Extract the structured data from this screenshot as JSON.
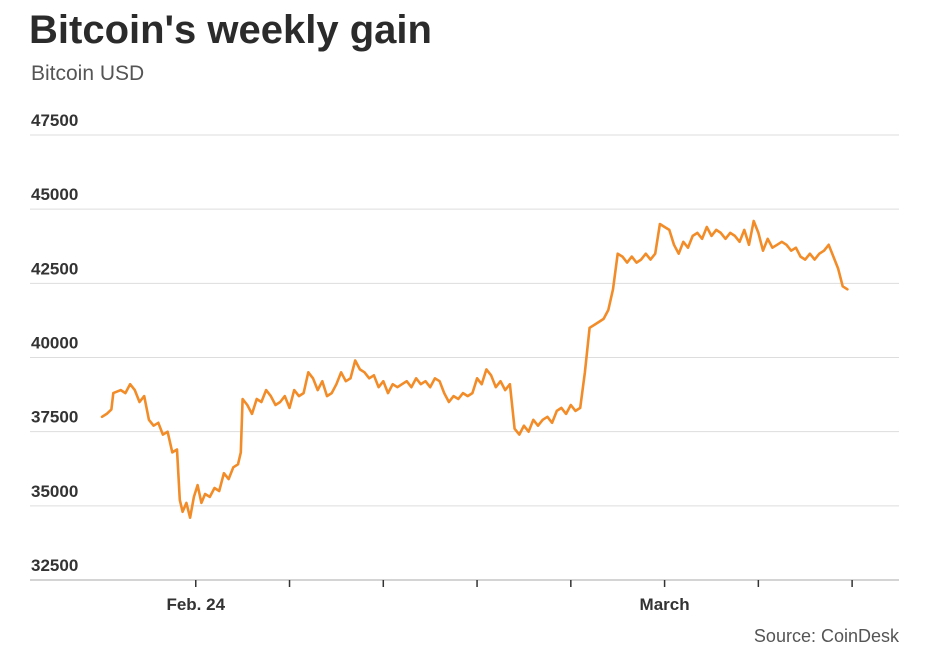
{
  "title": "Bitcoin's weekly gain",
  "subtitle": "Bitcoin USD",
  "source": "Source: CoinDesk",
  "colors": {
    "line": "#f28c28",
    "grid": "#dddddd",
    "axis": "#333333"
  },
  "chart_data": {
    "type": "line",
    "title": "Bitcoin's weekly gain",
    "subtitle": "Bitcoin USD",
    "xlabel": "",
    "ylabel": "",
    "grid": true,
    "legend": "none",
    "ylim": [
      32500,
      47500
    ],
    "y_ticks": [
      47500,
      45000,
      42500,
      40000,
      37500,
      35000,
      32500
    ],
    "x_tick_labels": [
      {
        "label": "Feb. 24",
        "x": 1
      },
      {
        "label": "March",
        "x": 6
      }
    ],
    "x_minor_ticks": [
      1,
      2,
      3,
      4,
      5,
      6,
      7,
      8
    ],
    "xlim": [
      0,
      8.5
    ],
    "series": [
      {
        "values": [
          [
            0.0,
            38000
          ],
          [
            0.05,
            38100
          ],
          [
            0.1,
            38250
          ],
          [
            0.12,
            38800
          ],
          [
            0.2,
            38900
          ],
          [
            0.25,
            38800
          ],
          [
            0.3,
            39100
          ],
          [
            0.35,
            38900
          ],
          [
            0.4,
            38500
          ],
          [
            0.45,
            38700
          ],
          [
            0.5,
            37900
          ],
          [
            0.55,
            37700
          ],
          [
            0.6,
            37800
          ],
          [
            0.65,
            37400
          ],
          [
            0.7,
            37500
          ],
          [
            0.75,
            36800
          ],
          [
            0.8,
            36900
          ],
          [
            0.83,
            35200
          ],
          [
            0.86,
            34800
          ],
          [
            0.9,
            35100
          ],
          [
            0.94,
            34600
          ],
          [
            0.98,
            35300
          ],
          [
            1.02,
            35700
          ],
          [
            1.06,
            35100
          ],
          [
            1.1,
            35400
          ],
          [
            1.15,
            35300
          ],
          [
            1.2,
            35600
          ],
          [
            1.25,
            35500
          ],
          [
            1.3,
            36100
          ],
          [
            1.35,
            35900
          ],
          [
            1.4,
            36300
          ],
          [
            1.45,
            36400
          ],
          [
            1.48,
            36800
          ],
          [
            1.5,
            38600
          ],
          [
            1.55,
            38400
          ],
          [
            1.6,
            38100
          ],
          [
            1.65,
            38600
          ],
          [
            1.7,
            38500
          ],
          [
            1.75,
            38900
          ],
          [
            1.8,
            38700
          ],
          [
            1.85,
            38400
          ],
          [
            1.9,
            38500
          ],
          [
            1.95,
            38700
          ],
          [
            2.0,
            38300
          ],
          [
            2.05,
            38900
          ],
          [
            2.1,
            38700
          ],
          [
            2.15,
            38800
          ],
          [
            2.2,
            39500
          ],
          [
            2.25,
            39300
          ],
          [
            2.3,
            38900
          ],
          [
            2.35,
            39200
          ],
          [
            2.4,
            38700
          ],
          [
            2.45,
            38800
          ],
          [
            2.5,
            39100
          ],
          [
            2.55,
            39500
          ],
          [
            2.6,
            39200
          ],
          [
            2.65,
            39300
          ],
          [
            2.7,
            39900
          ],
          [
            2.75,
            39600
          ],
          [
            2.8,
            39500
          ],
          [
            2.85,
            39300
          ],
          [
            2.9,
            39400
          ],
          [
            2.95,
            39000
          ],
          [
            3.0,
            39200
          ],
          [
            3.05,
            38800
          ],
          [
            3.1,
            39100
          ],
          [
            3.15,
            39000
          ],
          [
            3.2,
            39100
          ],
          [
            3.25,
            39200
          ],
          [
            3.3,
            39000
          ],
          [
            3.35,
            39300
          ],
          [
            3.4,
            39100
          ],
          [
            3.45,
            39200
          ],
          [
            3.5,
            39000
          ],
          [
            3.55,
            39300
          ],
          [
            3.6,
            39200
          ],
          [
            3.65,
            38800
          ],
          [
            3.7,
            38500
          ],
          [
            3.75,
            38700
          ],
          [
            3.8,
            38600
          ],
          [
            3.85,
            38800
          ],
          [
            3.9,
            38700
          ],
          [
            3.95,
            38800
          ],
          [
            4.0,
            39300
          ],
          [
            4.05,
            39100
          ],
          [
            4.1,
            39600
          ],
          [
            4.15,
            39400
          ],
          [
            4.2,
            39000
          ],
          [
            4.25,
            39200
          ],
          [
            4.3,
            38900
          ],
          [
            4.35,
            39100
          ],
          [
            4.4,
            37600
          ],
          [
            4.45,
            37400
          ],
          [
            4.5,
            37700
          ],
          [
            4.55,
            37500
          ],
          [
            4.6,
            37900
          ],
          [
            4.65,
            37700
          ],
          [
            4.7,
            37900
          ],
          [
            4.75,
            38000
          ],
          [
            4.8,
            37800
          ],
          [
            4.85,
            38200
          ],
          [
            4.9,
            38300
          ],
          [
            4.95,
            38100
          ],
          [
            5.0,
            38400
          ],
          [
            5.05,
            38200
          ],
          [
            5.1,
            38300
          ],
          [
            5.15,
            39500
          ],
          [
            5.2,
            41000
          ],
          [
            5.25,
            41100
          ],
          [
            5.3,
            41200
          ],
          [
            5.35,
            41300
          ],
          [
            5.4,
            41600
          ],
          [
            5.45,
            42300
          ],
          [
            5.5,
            43500
          ],
          [
            5.55,
            43400
          ],
          [
            5.6,
            43200
          ],
          [
            5.65,
            43400
          ],
          [
            5.7,
            43200
          ],
          [
            5.75,
            43300
          ],
          [
            5.8,
            43500
          ],
          [
            5.85,
            43300
          ],
          [
            5.9,
            43500
          ],
          [
            5.95,
            44500
          ],
          [
            6.0,
            44400
          ],
          [
            6.05,
            44300
          ],
          [
            6.1,
            43800
          ],
          [
            6.15,
            43500
          ],
          [
            6.2,
            43900
          ],
          [
            6.25,
            43700
          ],
          [
            6.3,
            44100
          ],
          [
            6.35,
            44200
          ],
          [
            6.4,
            44000
          ],
          [
            6.45,
            44400
          ],
          [
            6.5,
            44100
          ],
          [
            6.55,
            44300
          ],
          [
            6.6,
            44200
          ],
          [
            6.65,
            44000
          ],
          [
            6.7,
            44200
          ],
          [
            6.75,
            44100
          ],
          [
            6.8,
            43900
          ],
          [
            6.85,
            44300
          ],
          [
            6.9,
            43800
          ],
          [
            6.95,
            44600
          ],
          [
            7.0,
            44200
          ],
          [
            7.05,
            43600
          ],
          [
            7.1,
            44000
          ],
          [
            7.15,
            43700
          ],
          [
            7.2,
            43800
          ],
          [
            7.25,
            43900
          ],
          [
            7.3,
            43800
          ],
          [
            7.35,
            43600
          ],
          [
            7.4,
            43700
          ],
          [
            7.45,
            43400
          ],
          [
            7.5,
            43300
          ],
          [
            7.55,
            43500
          ],
          [
            7.6,
            43300
          ],
          [
            7.65,
            43500
          ],
          [
            7.7,
            43600
          ],
          [
            7.75,
            43800
          ],
          [
            7.8,
            43400
          ],
          [
            7.85,
            43000
          ],
          [
            7.9,
            42400
          ],
          [
            7.95,
            42300
          ]
        ]
      }
    ]
  }
}
